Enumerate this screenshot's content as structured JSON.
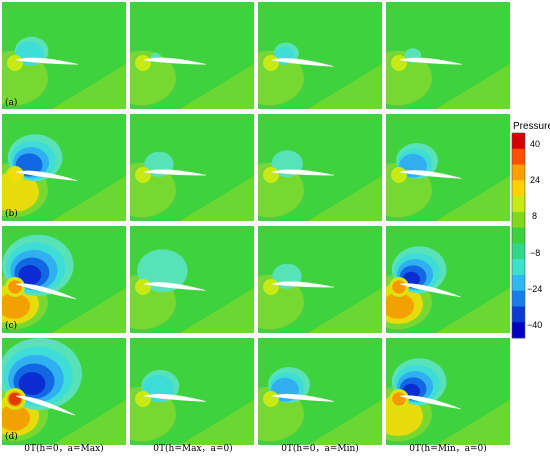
{
  "row_labels": [
    "(a)",
    "(b)",
    "(c)",
    "(d)"
  ],
  "column_labels": [
    "0T(h=0，a=Max)",
    "0T(h=Max，a=0)",
    "0T(h=0，a=Min)",
    "0T(h=Min，a=0)"
  ],
  "legend": {
    "title": "Pressure",
    "tick_labels": [
      "40",
      "24",
      "8",
      "−8",
      "−24",
      "−40"
    ],
    "colors": [
      "#d40000",
      "#ff5000",
      "#ffa000",
      "#ffd200",
      "#c8ea14",
      "#80d820",
      "#3cd23c",
      "#30d888",
      "#3ee2cc",
      "#30b8f0",
      "#1a7eea",
      "#0a3cd2",
      "#0000c0"
    ]
  },
  "colors": {
    "background": "#3fd23f",
    "high_far": "#8fda2c",
    "high_mid": "#c8ea14",
    "high_yellow": "#f2dc0a",
    "high_orange": "#f49a00",
    "high_red": "#e03c00",
    "low_teal": "#58e2b8",
    "low_cyan": "#3eddd8",
    "low_sky": "#30b0f0",
    "low_blue": "#1268e2",
    "low_deep": "#0a2cd0",
    "airfoil": "#ffffff"
  }
}
